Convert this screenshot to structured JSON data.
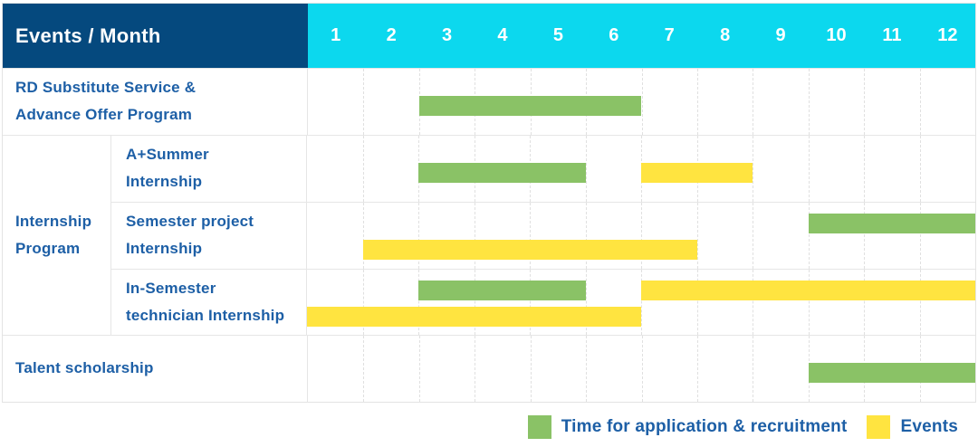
{
  "colors": {
    "header_navy": "#05497e",
    "header_cyan": "#0cd8ee",
    "label_blue": "#1d5fa6",
    "recruitment_green": "#8ac266",
    "events_yellow": "#ffe440"
  },
  "group_label_lines": [
    "Internship",
    "Program"
  ],
  "chart_data": {
    "type": "bar",
    "subtype": "gantt-timeline",
    "corner_header": "Events / Month",
    "xlabel": "Month",
    "months": [
      "1",
      "2",
      "3",
      "4",
      "5",
      "6",
      "7",
      "8",
      "9",
      "10",
      "11",
      "12"
    ],
    "x_range": [
      1,
      12
    ],
    "grid": "dashed-vertical-month-lines",
    "legend_position": "bottom-right",
    "series": [
      {
        "name": "Time for application & recruitment",
        "color": "#8ac266"
      },
      {
        "name": "Events",
        "color": "#ffe440"
      }
    ],
    "rows": [
      {
        "group": "",
        "label": "RD Substitute Service & Advance Offer Program",
        "label_lines": [
          "RD Substitute Service &",
          "Advance Offer Program"
        ],
        "tracks": [
          [
            {
              "series": "Time for application & recruitment",
              "start_month": 3,
              "end_month": 6
            }
          ]
        ]
      },
      {
        "group": "Internship Program",
        "label": "A+Summer Internship",
        "label_lines": [
          "A+Summer",
          "Internship"
        ],
        "tracks": [
          [
            {
              "series": "Time for application & recruitment",
              "start_month": 3,
              "end_month": 5
            },
            {
              "series": "Events",
              "start_month": 7,
              "end_month": 8
            }
          ]
        ]
      },
      {
        "group": "Internship Program",
        "label": "Semester project Internship",
        "label_lines": [
          "Semester project",
          "Internship"
        ],
        "tracks": [
          [
            {
              "series": "Time for application & recruitment",
              "start_month": 10,
              "end_month": 12
            }
          ],
          [
            {
              "series": "Events",
              "start_month": 2,
              "end_month": 7
            }
          ]
        ]
      },
      {
        "group": "Internship Program",
        "label": "In-Semester technician Internship",
        "label_lines": [
          "In-Semester",
          "technician Internship"
        ],
        "tracks": [
          [
            {
              "series": "Time for application & recruitment",
              "start_month": 3,
              "end_month": 5
            },
            {
              "series": "Events",
              "start_month": 7,
              "end_month": 12
            }
          ],
          [
            {
              "series": "Events",
              "start_month": 1,
              "end_month": 6
            }
          ]
        ]
      },
      {
        "group": "",
        "label": "Talent scholarship",
        "label_lines": [
          "Talent scholarship"
        ],
        "tracks": [
          [
            {
              "series": "Time for application & recruitment",
              "start_month": 10,
              "end_month": 12
            }
          ]
        ]
      }
    ]
  },
  "legend": {
    "items": [
      {
        "label": "Time for application & recruitment",
        "color": "#8ac266"
      },
      {
        "label": "Events",
        "color": "#ffe440"
      }
    ]
  }
}
